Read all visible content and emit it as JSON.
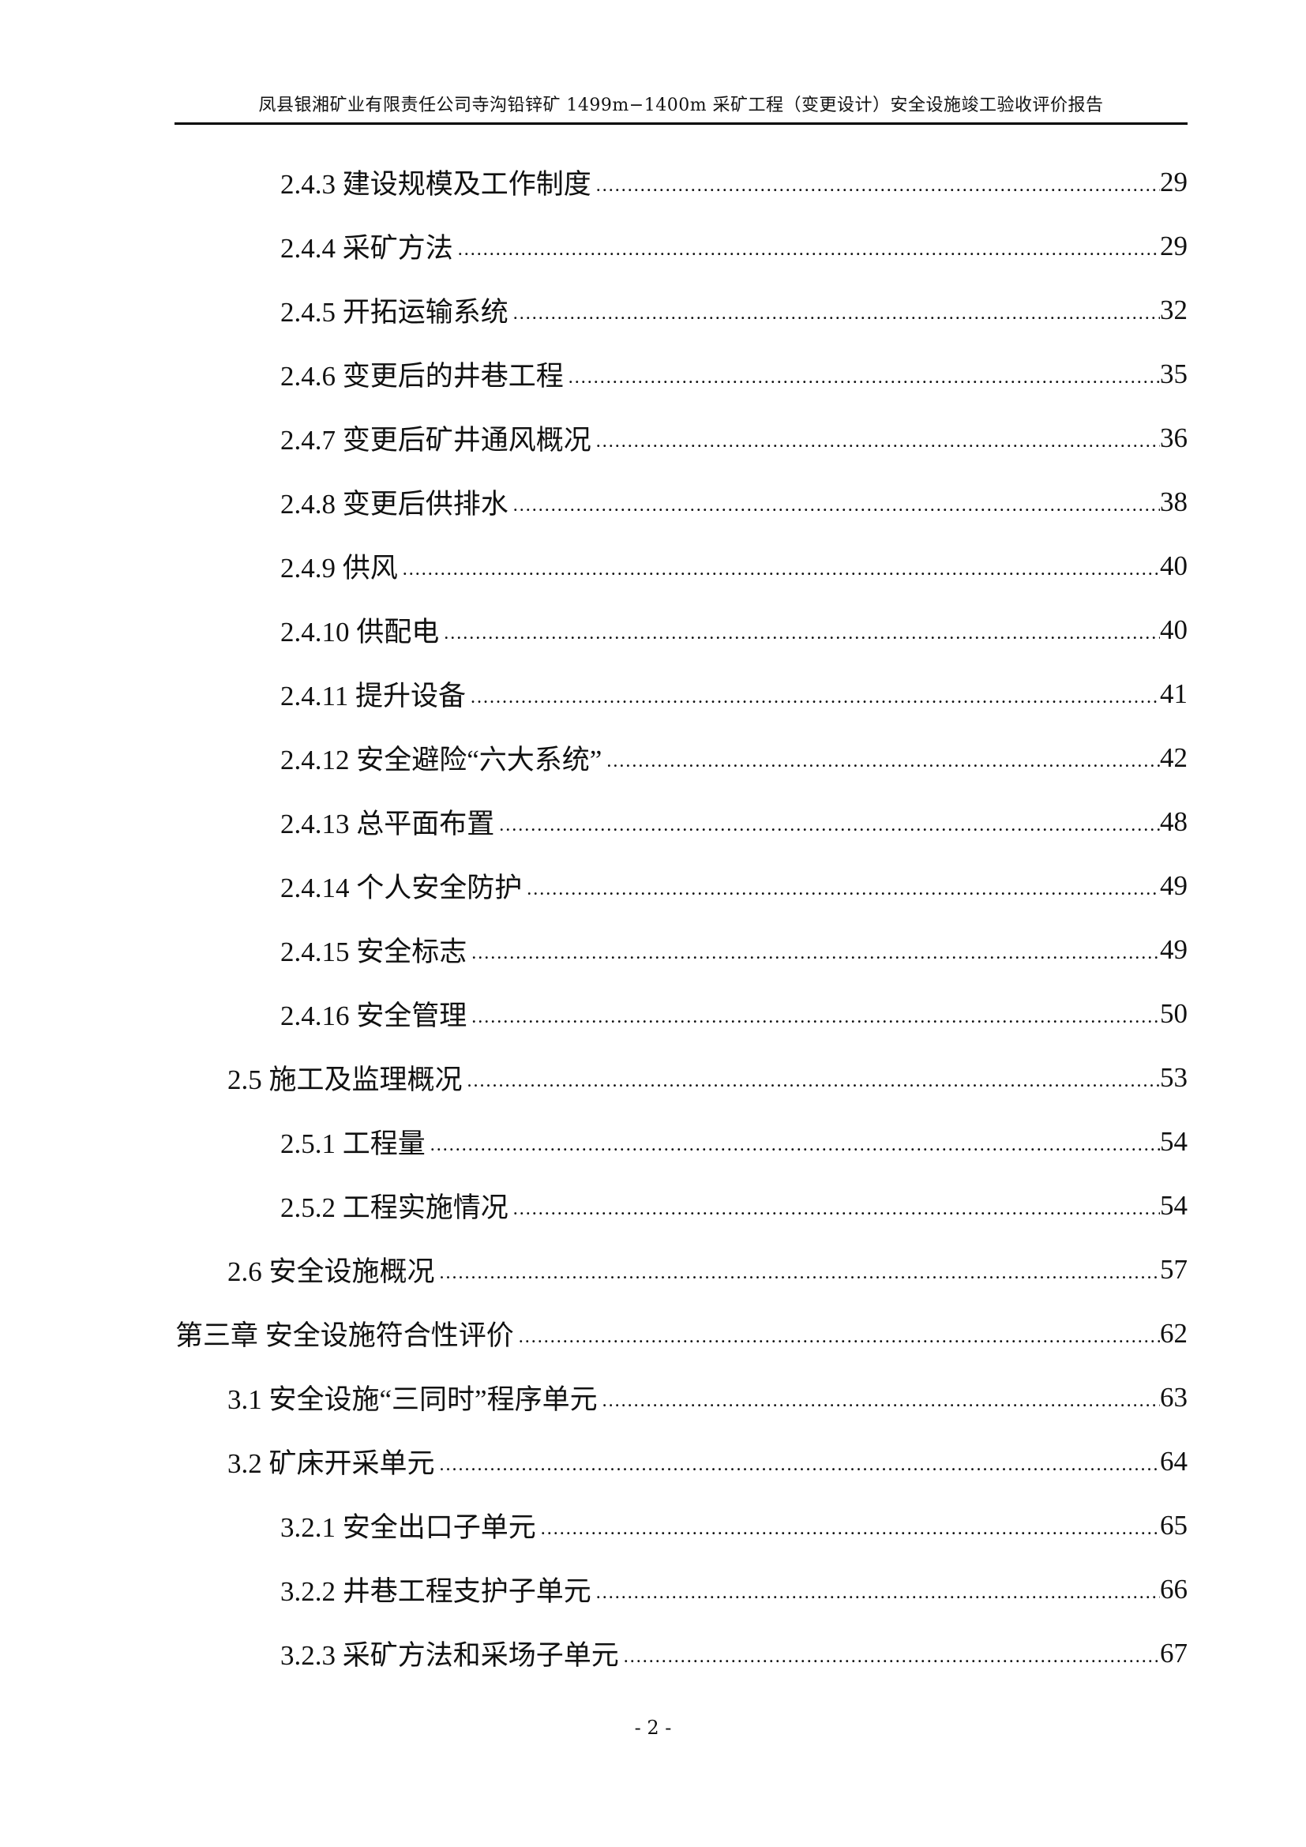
{
  "header": {
    "title": "凤县银湘矿业有限责任公司寺沟铅锌矿 1499m−1400m 采矿工程（变更设计）安全设施竣工验收评价报告"
  },
  "toc": [
    {
      "level": 3,
      "label": "2.4.3 建设规模及工作制度",
      "page": "29"
    },
    {
      "level": 3,
      "label": "2.4.4 采矿方法",
      "page": "29"
    },
    {
      "level": 3,
      "label": "2.4.5 开拓运输系统",
      "page": "32"
    },
    {
      "level": 3,
      "label": "2.4.6 变更后的井巷工程",
      "page": "35"
    },
    {
      "level": 3,
      "label": "2.4.7 变更后矿井通风概况",
      "page": "36"
    },
    {
      "level": 3,
      "label": "2.4.8 变更后供排水",
      "page": "38"
    },
    {
      "level": 3,
      "label": "2.4.9 供风",
      "page": "40"
    },
    {
      "level": 3,
      "label": "2.4.10 供配电",
      "page": "40"
    },
    {
      "level": 3,
      "label": "2.4.11 提升设备",
      "page": "41"
    },
    {
      "level": 3,
      "label": "2.4.12 安全避险“六大系统”",
      "page": "42"
    },
    {
      "level": 3,
      "label": "2.4.13 总平面布置",
      "page": "48"
    },
    {
      "level": 3,
      "label": "2.4.14 个人安全防护",
      "page": "49"
    },
    {
      "level": 3,
      "label": "2.4.15 安全标志",
      "page": "49"
    },
    {
      "level": 3,
      "label": "2.4.16 安全管理",
      "page": "50"
    },
    {
      "level": 2,
      "label": "2.5 施工及监理概况",
      "page": "53"
    },
    {
      "level": 3,
      "label": "2.5.1 工程量",
      "page": "54"
    },
    {
      "level": 3,
      "label": "2.5.2 工程实施情况",
      "page": "54"
    },
    {
      "level": 2,
      "label": "2.6 安全设施概况",
      "page": "57"
    },
    {
      "level": 1,
      "label": "第三章  安全设施符合性评价",
      "page": "62"
    },
    {
      "level": 2,
      "label": "3.1 安全设施“三同时”程序单元",
      "page": "63"
    },
    {
      "level": 2,
      "label": "3.2 矿床开采单元",
      "page": "64"
    },
    {
      "level": 3,
      "label": "3.2.1 安全出口子单元",
      "page": "65"
    },
    {
      "level": 3,
      "label": "3.2.2 井巷工程支护子单元",
      "page": "66"
    },
    {
      "level": 3,
      "label": "3.2.3 采矿方法和采场子单元",
      "page": "67"
    }
  ],
  "footer": {
    "page_number": "- 2 -"
  }
}
